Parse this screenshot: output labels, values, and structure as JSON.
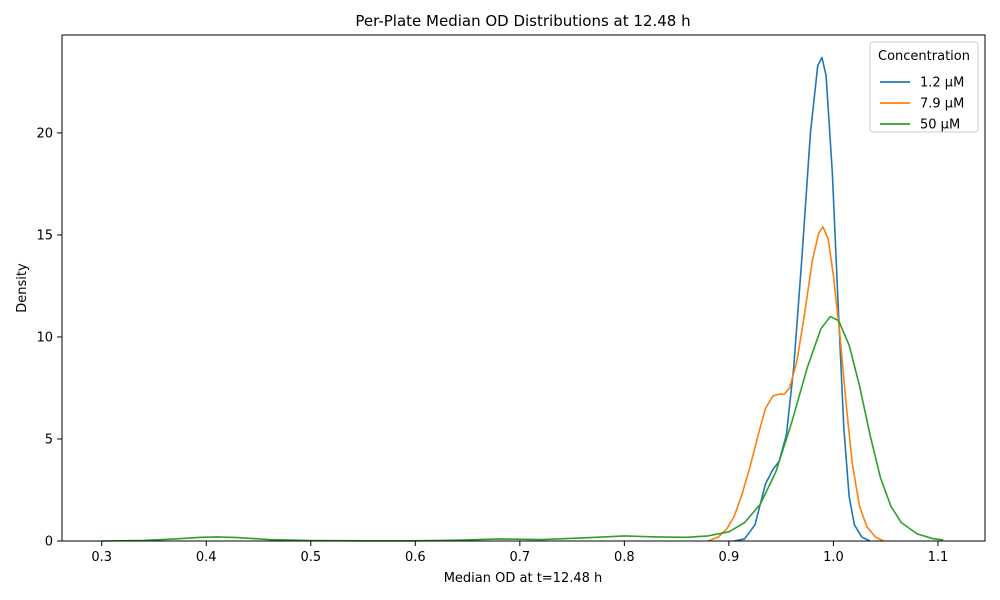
{
  "chart_data": {
    "type": "line",
    "title": "Per-Plate Median OD Distributions at 12.48 h",
    "xlabel": "Median OD at t=12.48 h",
    "ylabel": "Density",
    "xlim": [
      0.262,
      1.145
    ],
    "ylim": [
      0,
      24.8
    ],
    "x_ticks": [
      0.3,
      0.4,
      0.5,
      0.6,
      0.7,
      0.8,
      0.9,
      1.0,
      1.1
    ],
    "x_tick_labels": [
      "0.3",
      "0.4",
      "0.5",
      "0.6",
      "0.7",
      "0.8",
      "0.9",
      "1.0",
      "1.1"
    ],
    "y_ticks": [
      0,
      5,
      10,
      15,
      20
    ],
    "y_tick_labels": [
      "0",
      "5",
      "10",
      "15",
      "20"
    ],
    "grid": false,
    "legend": {
      "title": "Concentration",
      "position": "top-right"
    },
    "series": [
      {
        "name": "1.2 µM",
        "color": "#1f77b4",
        "points": [
          [
            0.905,
            0.0
          ],
          [
            0.915,
            0.1
          ],
          [
            0.925,
            0.8
          ],
          [
            0.935,
            2.8
          ],
          [
            0.942,
            3.5
          ],
          [
            0.948,
            3.9
          ],
          [
            0.955,
            5.2
          ],
          [
            0.962,
            8.5
          ],
          [
            0.97,
            14.0
          ],
          [
            0.978,
            20.0
          ],
          [
            0.985,
            23.3
          ],
          [
            0.989,
            23.7
          ],
          [
            0.993,
            22.8
          ],
          [
            0.999,
            18.0
          ],
          [
            1.005,
            11.0
          ],
          [
            1.01,
            5.5
          ],
          [
            1.015,
            2.2
          ],
          [
            1.02,
            0.8
          ],
          [
            1.027,
            0.2
          ],
          [
            1.035,
            0.0
          ]
        ]
      },
      {
        "name": "7.9 µM",
        "color": "#ff7f0e",
        "points": [
          [
            0.88,
            0.0
          ],
          [
            0.89,
            0.2
          ],
          [
            0.898,
            0.6
          ],
          [
            0.905,
            1.2
          ],
          [
            0.912,
            2.2
          ],
          [
            0.92,
            3.6
          ],
          [
            0.928,
            5.2
          ],
          [
            0.935,
            6.5
          ],
          [
            0.942,
            7.1
          ],
          [
            0.948,
            7.2
          ],
          [
            0.953,
            7.2
          ],
          [
            0.958,
            7.5
          ],
          [
            0.965,
            8.8
          ],
          [
            0.972,
            11.0
          ],
          [
            0.98,
            13.8
          ],
          [
            0.986,
            15.1
          ],
          [
            0.99,
            15.4
          ],
          [
            0.995,
            14.8
          ],
          [
            1.0,
            13.0
          ],
          [
            1.006,
            10.2
          ],
          [
            1.012,
            6.8
          ],
          [
            1.018,
            3.8
          ],
          [
            1.025,
            1.7
          ],
          [
            1.032,
            0.7
          ],
          [
            1.04,
            0.2
          ],
          [
            1.048,
            0.0
          ]
        ]
      },
      {
        "name": "50 µM",
        "color": "#2ca02c",
        "points": [
          [
            0.3,
            0.0
          ],
          [
            0.34,
            0.03
          ],
          [
            0.37,
            0.1
          ],
          [
            0.395,
            0.18
          ],
          [
            0.41,
            0.2
          ],
          [
            0.43,
            0.17
          ],
          [
            0.46,
            0.07
          ],
          [
            0.5,
            0.02
          ],
          [
            0.55,
            0.01
          ],
          [
            0.6,
            0.01
          ],
          [
            0.64,
            0.04
          ],
          [
            0.68,
            0.1
          ],
          [
            0.72,
            0.07
          ],
          [
            0.76,
            0.15
          ],
          [
            0.8,
            0.25
          ],
          [
            0.83,
            0.2
          ],
          [
            0.86,
            0.18
          ],
          [
            0.88,
            0.25
          ],
          [
            0.9,
            0.45
          ],
          [
            0.915,
            0.9
          ],
          [
            0.93,
            1.8
          ],
          [
            0.945,
            3.4
          ],
          [
            0.96,
            5.8
          ],
          [
            0.975,
            8.5
          ],
          [
            0.988,
            10.4
          ],
          [
            0.997,
            11.0
          ],
          [
            1.005,
            10.8
          ],
          [
            1.015,
            9.6
          ],
          [
            1.025,
            7.6
          ],
          [
            1.035,
            5.2
          ],
          [
            1.045,
            3.1
          ],
          [
            1.055,
            1.7
          ],
          [
            1.065,
            0.9
          ],
          [
            1.08,
            0.35
          ],
          [
            1.095,
            0.12
          ],
          [
            1.105,
            0.05
          ]
        ]
      }
    ]
  }
}
